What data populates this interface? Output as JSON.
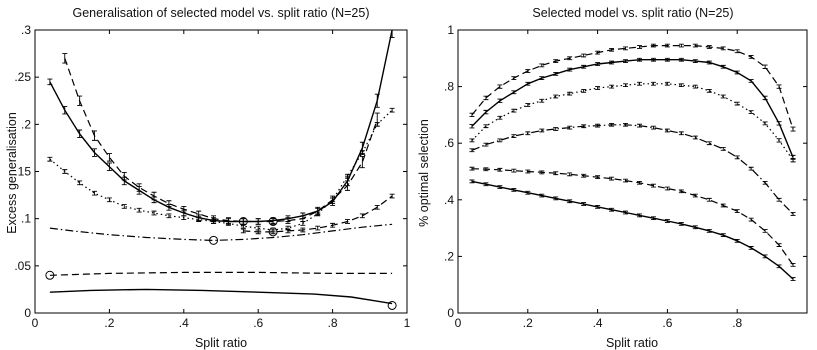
{
  "chart_data": [
    {
      "type": "line",
      "title": "Generalisation of selected model vs. split ratio (N=25)",
      "xlabel": "Split ratio",
      "ylabel": "Excess generalisation",
      "xlim": [
        0,
        1
      ],
      "ylim": [
        0,
        0.3
      ],
      "xticks": [
        0,
        0.2,
        0.4,
        0.6,
        0.8,
        1
      ],
      "yticks": [
        0,
        0.05,
        0.1,
        0.15,
        0.2,
        0.25,
        0.3
      ],
      "grid": false,
      "legend": "none",
      "series": [
        {
          "style": "solid",
          "errorbars": true,
          "x": [
            0.04,
            0.08,
            0.12,
            0.16,
            0.2,
            0.24,
            0.28,
            0.32,
            0.36,
            0.4,
            0.44,
            0.48,
            0.52,
            0.56,
            0.6,
            0.64,
            0.68,
            0.72,
            0.76,
            0.8,
            0.84,
            0.88,
            0.92,
            0.96
          ],
          "y": [
            0.245,
            0.215,
            0.19,
            0.17,
            0.155,
            0.14,
            0.13,
            0.12,
            0.112,
            0.106,
            0.101,
            0.098,
            0.097,
            0.097,
            0.097,
            0.098,
            0.1,
            0.103,
            0.108,
            0.118,
            0.14,
            0.175,
            0.225,
            0.3
          ],
          "err": [
            0.003,
            0.004,
            0.004,
            0.004,
            0.004,
            0.004,
            0.004,
            0.003,
            0.003,
            0.003,
            0.003,
            0.003,
            0.003,
            0.003,
            0.003,
            0.003,
            0.003,
            0.003,
            0.003,
            0.004,
            0.005,
            0.006,
            0.007,
            0.008
          ],
          "marker": {
            "x": 0.56,
            "y": 0.097
          }
        },
        {
          "style": "dashed",
          "errorbars": true,
          "x": [
            0.08,
            0.12,
            0.16,
            0.2,
            0.24,
            0.28,
            0.32,
            0.36,
            0.4,
            0.44,
            0.48,
            0.52,
            0.56,
            0.6,
            0.64,
            0.68,
            0.72,
            0.76,
            0.8,
            0.84,
            0.88,
            0.92
          ],
          "y": [
            0.27,
            0.225,
            0.188,
            0.165,
            0.145,
            0.133,
            0.124,
            0.116,
            0.11,
            0.105,
            0.1,
            0.098,
            0.097,
            0.097,
            0.097,
            0.098,
            0.1,
            0.108,
            0.12,
            0.135,
            0.16,
            0.205
          ],
          "err": [
            0.005,
            0.005,
            0.005,
            0.004,
            0.004,
            0.004,
            0.004,
            0.003,
            0.003,
            0.003,
            0.003,
            0.003,
            0.003,
            0.003,
            0.003,
            0.003,
            0.003,
            0.004,
            0.004,
            0.005,
            0.006,
            0.007
          ],
          "marker": {
            "x": 0.64,
            "y": 0.097
          }
        },
        {
          "style": "dotted",
          "errorbars": true,
          "x": [
            0.04,
            0.08,
            0.12,
            0.16,
            0.2,
            0.24,
            0.28,
            0.32,
            0.36,
            0.4,
            0.44,
            0.48,
            0.52,
            0.56,
            0.6,
            0.64,
            0.68,
            0.72,
            0.76,
            0.8,
            0.84,
            0.88,
            0.92,
            0.96
          ],
          "y": [
            0.163,
            0.15,
            0.138,
            0.127,
            0.12,
            0.113,
            0.109,
            0.106,
            0.103,
            0.101,
            0.099,
            0.097,
            0.095,
            0.092,
            0.09,
            0.088,
            0.09,
            0.095,
            0.105,
            0.12,
            0.145,
            0.17,
            0.2,
            0.215
          ],
          "err": [
            0.002,
            0.002,
            0.002,
            0.002,
            0.002,
            0.002,
            0.002,
            0.002,
            0.002,
            0.002,
            0.002,
            0.002,
            0.002,
            0.002,
            0.002,
            0.002,
            0.002,
            0.002,
            0.002,
            0.002,
            0.002,
            0.002,
            0.002,
            0.002
          ]
        },
        {
          "style": "dashed",
          "errorbars": true,
          "x": [
            0.56,
            0.6,
            0.64,
            0.68,
            0.72,
            0.76,
            0.8,
            0.84,
            0.88,
            0.92,
            0.96
          ],
          "y": [
            0.087,
            0.086,
            0.086,
            0.087,
            0.088,
            0.09,
            0.093,
            0.097,
            0.103,
            0.112,
            0.124
          ],
          "err": [
            0.002,
            0.002,
            0.002,
            0.002,
            0.002,
            0.002,
            0.002,
            0.002,
            0.002,
            0.002,
            0.002
          ],
          "marker": {
            "x": 0.64,
            "y": 0.086
          }
        },
        {
          "style": "dashdot",
          "errorbars": false,
          "x": [
            0.04,
            0.1,
            0.2,
            0.3,
            0.4,
            0.48,
            0.56,
            0.64,
            0.72,
            0.8,
            0.88,
            0.96
          ],
          "y": [
            0.09,
            0.087,
            0.083,
            0.08,
            0.078,
            0.077,
            0.078,
            0.08,
            0.083,
            0.087,
            0.091,
            0.094
          ],
          "marker": {
            "x": 0.48,
            "y": 0.077
          }
        },
        {
          "style": "dashed",
          "errorbars": false,
          "x": [
            0.04,
            0.2,
            0.4,
            0.6,
            0.8,
            0.96
          ],
          "y": [
            0.04,
            0.042,
            0.043,
            0.043,
            0.042,
            0.042
          ],
          "marker": {
            "x": 0.04,
            "y": 0.04
          }
        },
        {
          "style": "solid",
          "errorbars": false,
          "x": [
            0.04,
            0.15,
            0.3,
            0.45,
            0.6,
            0.75,
            0.85,
            0.96
          ],
          "y": [
            0.022,
            0.024,
            0.025,
            0.024,
            0.022,
            0.02,
            0.017,
            0.01
          ],
          "marker": {
            "x": 0.96,
            "y": 0.008
          }
        }
      ]
    },
    {
      "type": "line",
      "title": "Selected model vs. split ratio (N=25)",
      "xlabel": "Split ratio",
      "ylabel": "% optimal selection",
      "xlim": [
        0,
        1
      ],
      "ylim": [
        0,
        1
      ],
      "xticks": [
        0,
        0.2,
        0.4,
        0.6,
        0.8
      ],
      "yticks": [
        0,
        0.2,
        0.4,
        0.6,
        0.8,
        1
      ],
      "grid": false,
      "legend": "none",
      "series": [
        {
          "style": "dashed",
          "errorbars": true,
          "x": [
            0.04,
            0.08,
            0.12,
            0.16,
            0.2,
            0.24,
            0.28,
            0.32,
            0.36,
            0.4,
            0.44,
            0.48,
            0.52,
            0.56,
            0.6,
            0.64,
            0.68,
            0.72,
            0.76,
            0.8,
            0.84,
            0.88,
            0.92,
            0.96
          ],
          "y": [
            0.7,
            0.76,
            0.8,
            0.83,
            0.855,
            0.875,
            0.89,
            0.9,
            0.91,
            0.92,
            0.93,
            0.935,
            0.94,
            0.945,
            0.945,
            0.945,
            0.945,
            0.94,
            0.935,
            0.925,
            0.905,
            0.87,
            0.8,
            0.65
          ],
          "err": [
            0.006,
            0.006,
            0.006,
            0.005,
            0.005,
            0.005,
            0.005,
            0.005,
            0.005,
            0.005,
            0.005,
            0.005,
            0.005,
            0.005,
            0.005,
            0.005,
            0.005,
            0.005,
            0.005,
            0.005,
            0.005,
            0.006,
            0.006,
            0.007
          ]
        },
        {
          "style": "solid",
          "errorbars": true,
          "x": [
            0.04,
            0.08,
            0.12,
            0.16,
            0.2,
            0.24,
            0.28,
            0.32,
            0.36,
            0.4,
            0.44,
            0.48,
            0.52,
            0.56,
            0.6,
            0.64,
            0.68,
            0.72,
            0.76,
            0.8,
            0.84,
            0.88,
            0.92,
            0.96
          ],
          "y": [
            0.66,
            0.71,
            0.75,
            0.78,
            0.81,
            0.83,
            0.845,
            0.86,
            0.87,
            0.88,
            0.885,
            0.89,
            0.895,
            0.895,
            0.895,
            0.895,
            0.89,
            0.885,
            0.87,
            0.85,
            0.82,
            0.76,
            0.67,
            0.55
          ],
          "err": [
            0.006,
            0.006,
            0.006,
            0.005,
            0.005,
            0.005,
            0.005,
            0.005,
            0.005,
            0.005,
            0.005,
            0.005,
            0.005,
            0.005,
            0.005,
            0.005,
            0.005,
            0.005,
            0.005,
            0.005,
            0.005,
            0.006,
            0.006,
            0.007
          ]
        },
        {
          "style": "dotted",
          "errorbars": true,
          "x": [
            0.04,
            0.08,
            0.12,
            0.16,
            0.2,
            0.24,
            0.28,
            0.32,
            0.36,
            0.4,
            0.44,
            0.48,
            0.52,
            0.56,
            0.6,
            0.64,
            0.68,
            0.72,
            0.76,
            0.8,
            0.84,
            0.88,
            0.92,
            0.96
          ],
          "y": [
            0.61,
            0.66,
            0.69,
            0.715,
            0.735,
            0.75,
            0.765,
            0.775,
            0.785,
            0.795,
            0.8,
            0.805,
            0.81,
            0.81,
            0.81,
            0.805,
            0.8,
            0.785,
            0.765,
            0.74,
            0.71,
            0.67,
            0.61,
            0.54
          ],
          "err": [
            0.005,
            0.005,
            0.005,
            0.005,
            0.005,
            0.005,
            0.005,
            0.005,
            0.005,
            0.005,
            0.005,
            0.005,
            0.005,
            0.005,
            0.005,
            0.005,
            0.005,
            0.005,
            0.005,
            0.005,
            0.005,
            0.005,
            0.006,
            0.006
          ]
        },
        {
          "style": "dashdot",
          "errorbars": true,
          "x": [
            0.04,
            0.08,
            0.12,
            0.16,
            0.2,
            0.24,
            0.28,
            0.32,
            0.36,
            0.4,
            0.44,
            0.48,
            0.52,
            0.56,
            0.6,
            0.64,
            0.68,
            0.72,
            0.76,
            0.8,
            0.84,
            0.88,
            0.92,
            0.96
          ],
          "y": [
            0.575,
            0.595,
            0.61,
            0.625,
            0.635,
            0.645,
            0.65,
            0.655,
            0.66,
            0.662,
            0.665,
            0.665,
            0.662,
            0.655,
            0.645,
            0.635,
            0.62,
            0.6,
            0.58,
            0.55,
            0.51,
            0.46,
            0.4,
            0.35
          ],
          "err": [
            0.005,
            0.005,
            0.005,
            0.005,
            0.005,
            0.005,
            0.005,
            0.005,
            0.005,
            0.005,
            0.005,
            0.005,
            0.005,
            0.005,
            0.005,
            0.005,
            0.005,
            0.005,
            0.005,
            0.005,
            0.005,
            0.005,
            0.005,
            0.005
          ]
        },
        {
          "style": "dashed",
          "errorbars": true,
          "x": [
            0.04,
            0.08,
            0.12,
            0.16,
            0.2,
            0.24,
            0.28,
            0.32,
            0.36,
            0.4,
            0.44,
            0.48,
            0.52,
            0.56,
            0.6,
            0.64,
            0.68,
            0.72,
            0.76,
            0.8,
            0.84,
            0.88,
            0.92,
            0.96
          ],
          "y": [
            0.51,
            0.508,
            0.506,
            0.503,
            0.5,
            0.497,
            0.494,
            0.49,
            0.485,
            0.48,
            0.475,
            0.468,
            0.46,
            0.45,
            0.44,
            0.43,
            0.415,
            0.4,
            0.38,
            0.36,
            0.33,
            0.29,
            0.24,
            0.17
          ],
          "err": [
            0.005,
            0.005,
            0.005,
            0.005,
            0.005,
            0.005,
            0.005,
            0.005,
            0.005,
            0.005,
            0.005,
            0.005,
            0.005,
            0.005,
            0.005,
            0.005,
            0.005,
            0.005,
            0.005,
            0.005,
            0.005,
            0.005,
            0.005,
            0.005
          ]
        },
        {
          "style": "solid",
          "errorbars": true,
          "x": [
            0.04,
            0.08,
            0.12,
            0.16,
            0.2,
            0.24,
            0.28,
            0.32,
            0.36,
            0.4,
            0.44,
            0.48,
            0.52,
            0.56,
            0.6,
            0.64,
            0.68,
            0.72,
            0.76,
            0.8,
            0.84,
            0.88,
            0.92,
            0.96
          ],
          "y": [
            0.465,
            0.455,
            0.445,
            0.435,
            0.425,
            0.415,
            0.405,
            0.395,
            0.385,
            0.375,
            0.365,
            0.355,
            0.345,
            0.335,
            0.325,
            0.315,
            0.303,
            0.29,
            0.275,
            0.255,
            0.23,
            0.2,
            0.165,
            0.12
          ],
          "err": [
            0.005,
            0.005,
            0.005,
            0.005,
            0.005,
            0.005,
            0.005,
            0.005,
            0.005,
            0.005,
            0.005,
            0.005,
            0.005,
            0.005,
            0.005,
            0.005,
            0.005,
            0.005,
            0.005,
            0.005,
            0.005,
            0.005,
            0.005,
            0.005
          ]
        }
      ]
    }
  ]
}
